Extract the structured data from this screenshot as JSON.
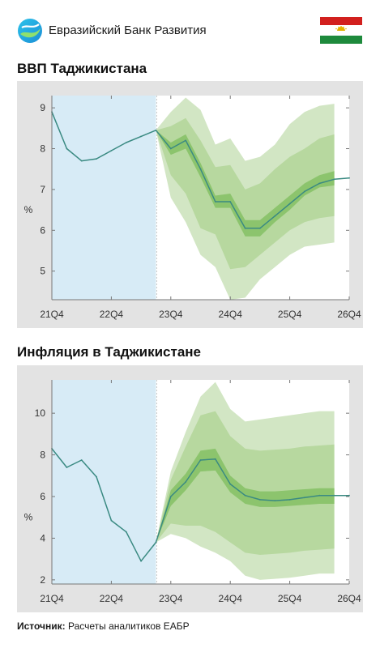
{
  "header": {
    "brand_name": "Евразийский Банк Развития",
    "logo_icon": "eadb-logo-icon",
    "flag_icon": "tajikistan-flag-icon"
  },
  "chart_data": [
    {
      "type": "line",
      "title": "ВВП Таджикистана",
      "ylabel": "%",
      "xlabel": "",
      "x_ticks": [
        "21Q4",
        "22Q4",
        "23Q4",
        "24Q4",
        "25Q4",
        "26Q4"
      ],
      "ylim": [
        4.3,
        9.3
      ],
      "y_ticks": [
        5,
        6,
        7,
        8,
        9
      ],
      "history_shading": {
        "from": "21Q4",
        "to": "23Q3"
      },
      "series": [
        {
          "x": [
            "21Q4",
            "22Q1",
            "22Q2",
            "22Q3",
            "22Q4",
            "23Q1",
            "23Q2",
            "23Q3",
            "23Q4",
            "24Q1",
            "24Q2",
            "24Q3",
            "24Q4",
            "25Q1",
            "25Q2",
            "25Q3",
            "25Q4",
            "26Q1",
            "26Q2",
            "26Q3",
            "26Q4"
          ],
          "values": [
            8.9,
            8.0,
            7.7,
            7.75,
            7.95,
            8.15,
            8.3,
            8.45,
            8.0,
            8.2,
            7.5,
            6.7,
            6.7,
            6.05,
            6.05,
            6.35,
            6.65,
            6.95,
            7.15,
            7.25,
            7.28
          ]
        }
      ],
      "forecast_bands": [
        {
          "name": "outer",
          "lower": [
            8.45,
            6.8,
            6.2,
            5.4,
            5.1,
            4.3,
            4.35,
            4.8,
            5.1,
            5.4,
            5.6,
            5.65,
            5.7
          ],
          "upper": [
            8.45,
            8.9,
            9.25,
            8.95,
            8.1,
            8.25,
            7.7,
            7.8,
            8.1,
            8.6,
            8.9,
            9.05,
            9.1
          ]
        },
        {
          "name": "middle",
          "lower": [
            8.45,
            7.35,
            6.9,
            6.05,
            5.9,
            5.05,
            5.1,
            5.4,
            5.7,
            6.0,
            6.2,
            6.3,
            6.35
          ],
          "upper": [
            8.45,
            8.55,
            8.75,
            8.2,
            7.55,
            7.6,
            7.0,
            7.15,
            7.5,
            7.8,
            8.0,
            8.25,
            8.35
          ]
        },
        {
          "name": "inner",
          "lower": [
            8.45,
            7.85,
            8.0,
            7.3,
            6.55,
            6.55,
            5.85,
            5.85,
            6.2,
            6.5,
            6.85,
            7.05,
            7.1
          ],
          "upper": [
            8.45,
            8.15,
            8.35,
            7.65,
            6.85,
            6.9,
            6.25,
            6.25,
            6.55,
            6.85,
            7.15,
            7.35,
            7.45
          ]
        }
      ],
      "colors": {
        "history_shade": "#d7ebf6",
        "band_outer": "#d2e6c4",
        "band_middle": "#b7d89f",
        "band_inner": "#8cc46d",
        "line": "#3a8a82",
        "plot_bg": "#ffffff",
        "frame_bg": "#e3e3e3"
      }
    },
    {
      "type": "line",
      "title": "Инфляция в Таджикистане",
      "ylabel": "%",
      "xlabel": "",
      "x_ticks": [
        "21Q4",
        "22Q4",
        "23Q4",
        "24Q4",
        "25Q4",
        "26Q4"
      ],
      "ylim": [
        1.8,
        11.6
      ],
      "y_ticks": [
        2,
        4,
        6,
        8,
        10
      ],
      "history_shading": {
        "from": "21Q4",
        "to": "23Q3"
      },
      "series": [
        {
          "x": [
            "21Q4",
            "22Q1",
            "22Q2",
            "22Q3",
            "22Q4",
            "23Q1",
            "23Q2",
            "23Q3",
            "23Q4",
            "24Q1",
            "24Q2",
            "24Q3",
            "24Q4",
            "25Q1",
            "25Q2",
            "25Q3",
            "25Q4",
            "26Q1",
            "26Q2",
            "26Q3",
            "26Q4"
          ],
          "values": [
            8.3,
            7.4,
            7.75,
            6.95,
            4.85,
            4.3,
            2.9,
            3.8,
            6.0,
            6.7,
            7.75,
            7.8,
            6.6,
            6.05,
            5.85,
            5.8,
            5.85,
            5.95,
            6.05,
            6.05,
            6.05
          ]
        }
      ],
      "forecast_bands": [
        {
          "name": "outer",
          "lower": [
            3.8,
            4.2,
            4.0,
            3.6,
            3.3,
            2.9,
            2.2,
            2.0,
            2.05,
            2.1,
            2.2,
            2.3,
            2.3
          ],
          "upper": [
            3.8,
            7.2,
            9.1,
            10.8,
            11.5,
            10.2,
            9.6,
            9.7,
            9.8,
            9.9,
            10.0,
            10.1,
            10.1
          ]
        },
        {
          "name": "middle",
          "lower": [
            3.8,
            4.7,
            4.6,
            4.6,
            4.3,
            3.8,
            3.3,
            3.2,
            3.25,
            3.3,
            3.4,
            3.45,
            3.5
          ],
          "upper": [
            3.8,
            6.8,
            8.4,
            9.9,
            10.1,
            8.9,
            8.3,
            8.2,
            8.25,
            8.3,
            8.4,
            8.45,
            8.5
          ]
        },
        {
          "name": "inner",
          "lower": [
            3.8,
            5.55,
            6.3,
            7.2,
            7.25,
            6.2,
            5.65,
            5.5,
            5.5,
            5.55,
            5.6,
            5.65,
            5.65
          ],
          "upper": [
            3.8,
            6.3,
            7.1,
            8.2,
            8.3,
            7.0,
            6.4,
            6.25,
            6.25,
            6.3,
            6.35,
            6.4,
            6.4
          ]
        }
      ],
      "colors": {
        "history_shade": "#d7ebf6",
        "band_outer": "#d2e6c4",
        "band_middle": "#b7d89f",
        "band_inner": "#8cc46d",
        "line": "#3a8a82",
        "plot_bg": "#ffffff",
        "frame_bg": "#e3e3e3"
      }
    }
  ],
  "footer": {
    "source_label": "Источник:",
    "source_text": " Расчеты аналитиков ЕАБР"
  }
}
